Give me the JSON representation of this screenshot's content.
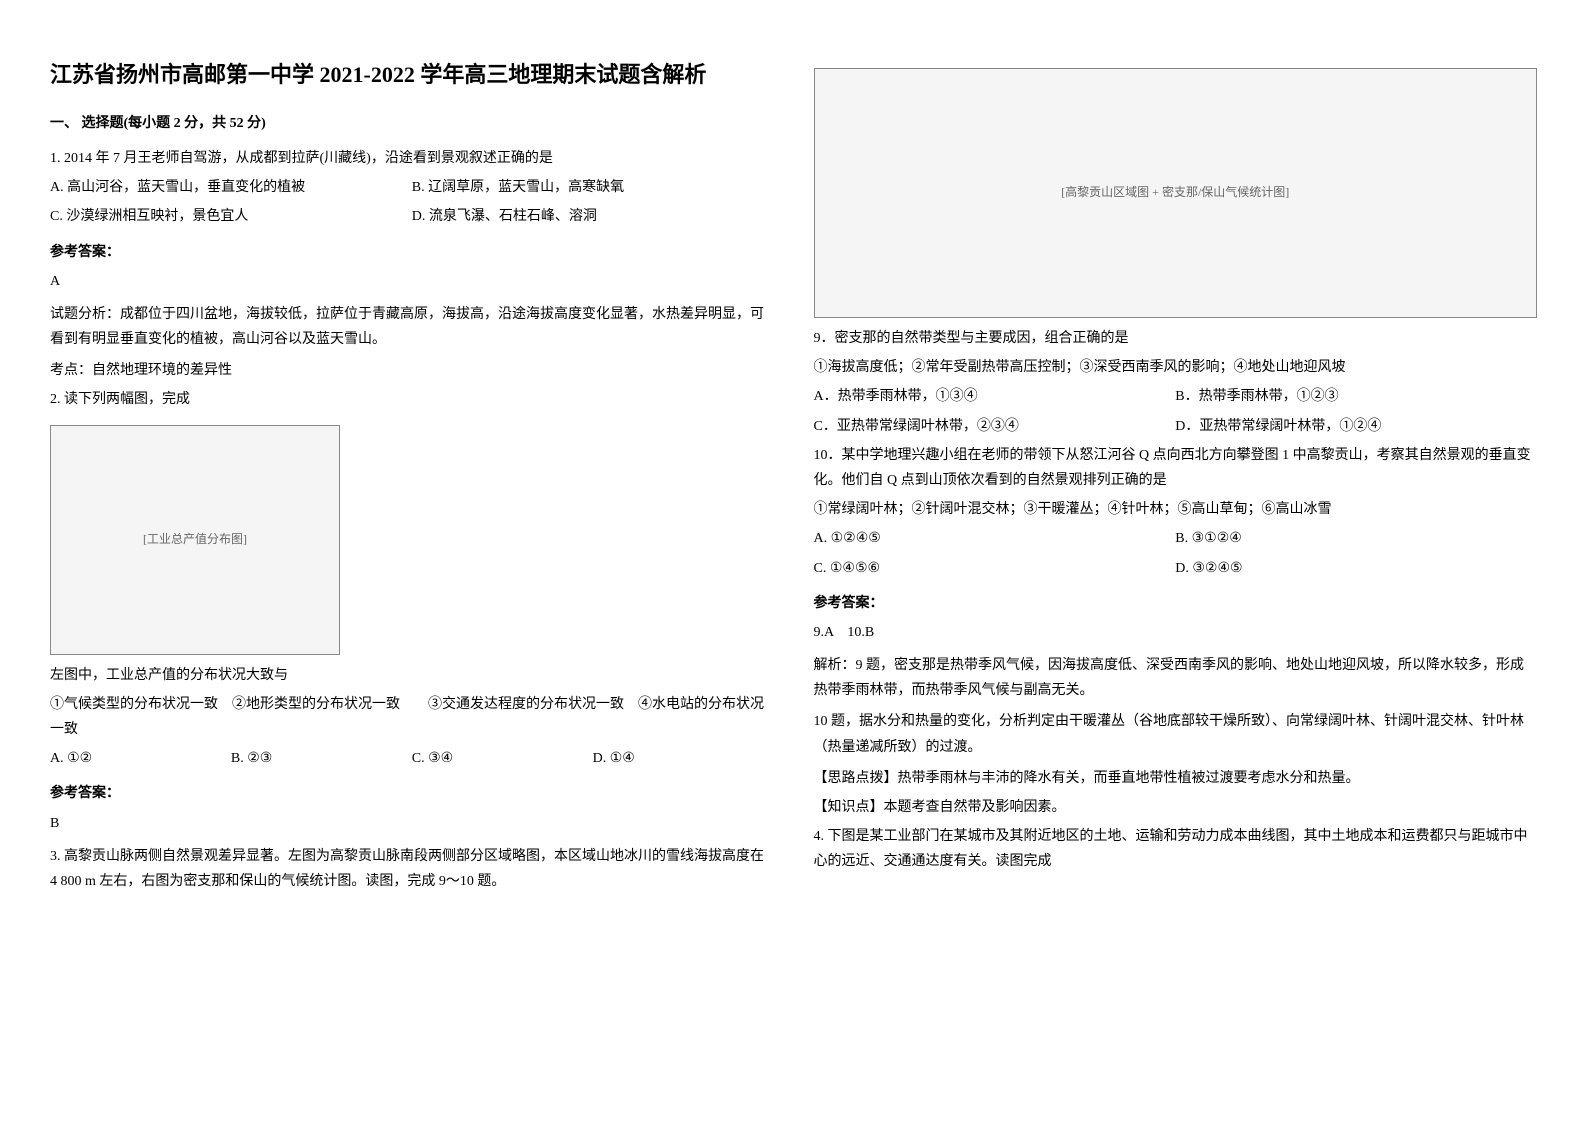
{
  "title": "江苏省扬州市高邮第一中学 2021-2022 学年高三地理期末试题含解析",
  "section1_header": "一、 选择题(每小题 2 分，共 52 分)",
  "q1": {
    "text": "1. 2014 年 7 月王老师自驾游，从成都到拉萨(川藏线)，沿途看到景观叙述正确的是",
    "optA": "A. 高山河谷，蓝天雪山，垂直变化的植被",
    "optB": "B. 辽阔草原，蓝天雪山，高寒缺氧",
    "optC": "C. 沙漠绿洲相互映衬，景色宜人",
    "optD": "D. 流泉飞瀑、石柱石峰、溶洞",
    "answer_label": "参考答案：",
    "answer": "A",
    "analysis": "试题分析：成都位于四川盆地，海拔较低，拉萨位于青藏高原，海拔高，沿途海拔高度变化显著，水热差异明显，可看到有明显垂直变化的植被，高山河谷以及蓝天雪山。",
    "point": "考点：自然地理环境的差异性"
  },
  "q2": {
    "text": "2. 读下列两幅图，完成",
    "image_label": "[工业总产值分布图]",
    "subtext": "左图中，工业总产值的分布状况大致与",
    "opts_text": "①气候类型的分布状况一致　②地形类型的分布状况一致　　③交通发达程度的分布状况一致　④水电站的分布状况一致",
    "optA": "A. ①②",
    "optB": "B. ②③",
    "optC": "C. ③④",
    "optD": "D. ①④",
    "answer_label": "参考答案：",
    "answer": "B"
  },
  "q3": {
    "text": "3. 高黎贡山脉两侧自然景观差异显著。左图为高黎贡山脉南段两侧部分区域略图，本区域山地冰川的雪线海拔高度在 4 800 m 左右，右图为密支那和保山的气候统计图。读图，完成 9～10 题。",
    "image_label": "[高黎贡山区域图 + 密支那/保山气候统计图]"
  },
  "q9": {
    "text": "9．密支那的自然带类型与主要成因，组合正确的是",
    "opts_text": "①海拔高度低；②常年受副热带高压控制；③深受西南季风的影响；④地处山地迎风坡",
    "optA": "A．热带季雨林带，①③④",
    "optB": "B．热带季雨林带，①②③",
    "optC": "C．亚热带常绿阔叶林带，②③④",
    "optD": "D．亚热带常绿阔叶林带，①②④"
  },
  "q10": {
    "text": "10．某中学地理兴趣小组在老师的带领下从怒江河谷 Q 点向西北方向攀登图 1 中高黎贡山，考察其自然景观的垂直变化。他们自 Q 点到山顶依次看到的自然景观排列正确的是",
    "opts_text": "①常绿阔叶林；②针阔叶混交林；③干暖灌丛；④针叶林；⑤高山草甸；⑥高山冰雪",
    "optA": "A. ①②④⑤",
    "optB": "B. ③①②④",
    "optC": "C. ①④⑤⑥",
    "optD": "D. ③②④⑤",
    "answer_label": "参考答案：",
    "answer": "9.A　10.B",
    "analysis1": "解析：9 题，密支那是热带季风气候，因海拔高度低、深受西南季风的影响、地处山地迎风坡，所以降水较多，形成热带季雨林带，而热带季风气候与副高无关。",
    "analysis2": "10 题，据水分和热量的变化，分析判定由干暖灌丛（谷地底部较干燥所致）、向常绿阔叶林、针阔叶混交林、针叶林（热量递减所致）的过渡。",
    "tip": "【思路点拨】热带季雨林与丰沛的降水有关，而垂直地带性植被过渡要考虑水分和热量。",
    "knowledge": "【知识点】本题考查自然带及影响因素。"
  },
  "q4": {
    "text": "4. 下图是某工业部门在某城市及其附近地区的土地、运输和劳动力成本曲线图，其中土地成本和运费都只与距城市中心的远近、交通通达度有关。读图完成"
  }
}
